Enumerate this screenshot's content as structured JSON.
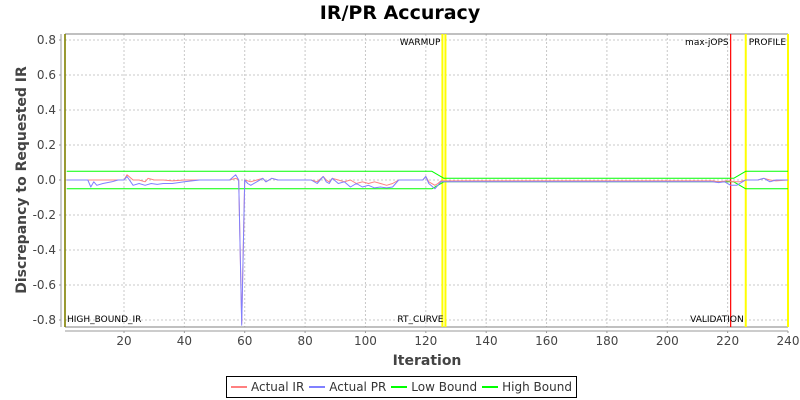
{
  "chart_data": {
    "type": "line",
    "title": "IR/PR Accuracy",
    "xlabel": "Iteration",
    "ylabel": "Discrepancy to Requested IR",
    "xlim": [
      1,
      240
    ],
    "ylim": [
      -0.83,
      0.83
    ],
    "xticks": [
      20,
      40,
      60,
      80,
      100,
      120,
      140,
      160,
      180,
      200,
      220,
      240
    ],
    "yticks": [
      0.8,
      0.6,
      0.4,
      0.2,
      0.0,
      -0.2,
      -0.4,
      -0.6,
      -0.8
    ],
    "ytick_labels": [
      "0.8",
      "0.6",
      "0.4",
      "0.2",
      "0.0",
      "-0.2",
      "-0.4",
      "-0.6",
      "-0.8"
    ],
    "grid": true,
    "legend_position": "bottom",
    "series": [
      {
        "name": "Actual IR",
        "color": "#ff8080",
        "points": [
          [
            1,
            0
          ],
          [
            8,
            0
          ],
          [
            10,
            0
          ],
          [
            14,
            0
          ],
          [
            18,
            0
          ],
          [
            20,
            0
          ],
          [
            21,
            0.03
          ],
          [
            23,
            0.0
          ],
          [
            25,
            0.0
          ],
          [
            27,
            -0.01
          ],
          [
            28,
            0.01
          ],
          [
            30,
            0.0
          ],
          [
            33,
            0.0
          ],
          [
            36,
            -0.005
          ],
          [
            40,
            0.0
          ],
          [
            45,
            0.0
          ],
          [
            50,
            0.0
          ],
          [
            55,
            0.0
          ],
          [
            57,
            0.01
          ],
          [
            58,
            0.0
          ],
          [
            59,
            -0.82
          ],
          [
            60,
            0.0
          ],
          [
            62,
            -0.01
          ],
          [
            64,
            0.0
          ],
          [
            66,
            0.01
          ],
          [
            67,
            -0.01
          ],
          [
            69,
            0.01
          ],
          [
            71,
            0.0
          ],
          [
            75,
            0.0
          ],
          [
            80,
            0.0
          ],
          [
            82,
            0.0
          ],
          [
            84,
            -0.01
          ],
          [
            86,
            0.02
          ],
          [
            87,
            0.0
          ],
          [
            88,
            -0.01
          ],
          [
            89,
            0.01
          ],
          [
            91,
            0.0
          ],
          [
            93,
            -0.01
          ],
          [
            95,
            0.0
          ],
          [
            97,
            -0.02
          ],
          [
            99,
            -0.01
          ],
          [
            101,
            -0.02
          ],
          [
            103,
            -0.01
          ],
          [
            105,
            -0.02
          ],
          [
            107,
            -0.03
          ],
          [
            109,
            -0.02
          ],
          [
            111,
            0.0
          ],
          [
            115,
            0.0
          ],
          [
            119,
            0.0
          ],
          [
            120,
            0.02
          ],
          [
            121,
            -0.01
          ],
          [
            123,
            -0.03
          ],
          [
            124,
            -0.02
          ],
          [
            125,
            -0.005
          ],
          [
            130,
            -0.005
          ],
          [
            140,
            -0.005
          ],
          [
            160,
            -0.005
          ],
          [
            180,
            -0.005
          ],
          [
            200,
            -0.005
          ],
          [
            215,
            -0.005
          ],
          [
            217,
            -0.01
          ],
          [
            220,
            -0.005
          ],
          [
            222,
            -0.01
          ],
          [
            224,
            -0.01
          ],
          [
            226,
            0.0
          ],
          [
            230,
            0.0
          ],
          [
            232,
            0.01
          ],
          [
            234,
            0.0
          ],
          [
            236,
            -0.005
          ],
          [
            240,
            0.0
          ]
        ]
      },
      {
        "name": "Actual PR",
        "color": "#8080ff",
        "points": [
          [
            1,
            0
          ],
          [
            8,
            0
          ],
          [
            9,
            -0.04
          ],
          [
            10,
            -0.01
          ],
          [
            11,
            -0.03
          ],
          [
            13,
            -0.02
          ],
          [
            16,
            -0.01
          ],
          [
            18,
            0.0
          ],
          [
            20,
            0.0
          ],
          [
            21,
            0.02
          ],
          [
            23,
            -0.03
          ],
          [
            25,
            -0.02
          ],
          [
            27,
            -0.03
          ],
          [
            29,
            -0.02
          ],
          [
            31,
            -0.025
          ],
          [
            33,
            -0.02
          ],
          [
            36,
            -0.02
          ],
          [
            40,
            -0.01
          ],
          [
            45,
            0.0
          ],
          [
            50,
            0.0
          ],
          [
            55,
            0.0
          ],
          [
            57,
            0.03
          ],
          [
            58,
            0.0
          ],
          [
            59,
            -0.83
          ],
          [
            60,
            0.0
          ],
          [
            61,
            -0.02
          ],
          [
            62,
            -0.03
          ],
          [
            64,
            -0.01
          ],
          [
            66,
            0.01
          ],
          [
            67,
            -0.01
          ],
          [
            69,
            0.01
          ],
          [
            71,
            0.0
          ],
          [
            75,
            0.0
          ],
          [
            80,
            0.0
          ],
          [
            82,
            0.0
          ],
          [
            84,
            -0.02
          ],
          [
            86,
            0.02
          ],
          [
            87,
            -0.01
          ],
          [
            88,
            -0.02
          ],
          [
            89,
            0.01
          ],
          [
            91,
            -0.02
          ],
          [
            93,
            -0.01
          ],
          [
            95,
            -0.04
          ],
          [
            97,
            -0.02
          ],
          [
            99,
            -0.04
          ],
          [
            101,
            -0.03
          ],
          [
            103,
            -0.045
          ],
          [
            105,
            -0.04
          ],
          [
            107,
            -0.045
          ],
          [
            109,
            -0.04
          ],
          [
            111,
            0.0
          ],
          [
            115,
            0.0
          ],
          [
            119,
            0.0
          ],
          [
            120,
            0.02
          ],
          [
            121,
            -0.02
          ],
          [
            123,
            -0.05
          ],
          [
            124,
            -0.03
          ],
          [
            125,
            -0.01
          ],
          [
            130,
            -0.01
          ],
          [
            140,
            -0.01
          ],
          [
            160,
            -0.01
          ],
          [
            180,
            -0.01
          ],
          [
            200,
            -0.01
          ],
          [
            215,
            -0.01
          ],
          [
            217,
            -0.015
          ],
          [
            219,
            -0.01
          ],
          [
            221,
            -0.03
          ],
          [
            223,
            -0.03
          ],
          [
            224,
            -0.02
          ],
          [
            226,
            0.0
          ],
          [
            230,
            0.0
          ],
          [
            232,
            0.01
          ],
          [
            234,
            -0.01
          ],
          [
            236,
            0.0
          ],
          [
            240,
            0.0
          ]
        ]
      },
      {
        "name": "Low Bound",
        "color": "#00ff00",
        "points": [
          [
            1,
            -0.05
          ],
          [
            122,
            -0.05
          ],
          [
            126,
            -0.01
          ],
          [
            222,
            -0.01
          ],
          [
            226,
            -0.05
          ],
          [
            240,
            -0.05
          ]
        ]
      },
      {
        "name": "High Bound",
        "color": "#00ff00",
        "points": [
          [
            1,
            0.05
          ],
          [
            122,
            0.05
          ],
          [
            126,
            0.01
          ],
          [
            222,
            0.01
          ],
          [
            226,
            0.05
          ],
          [
            240,
            0.05
          ]
        ]
      }
    ],
    "vertical_markers": [
      {
        "x": 1,
        "label": "HIGH_BOUND_IR",
        "color": "#808000",
        "label_pos": "bottom"
      },
      {
        "x": 125.5,
        "label": "WARMUP",
        "color": "#ffff00",
        "label_pos": "top"
      },
      {
        "x": 126.5,
        "label": "RT_CURVE",
        "color": "#ffff00",
        "label_pos": "bottom"
      },
      {
        "x": 221,
        "label": "max-jOPS",
        "color": "#ff0000",
        "label_pos": "top"
      },
      {
        "x": 226,
        "label": "VALIDATION",
        "color": "#ffff00",
        "label_pos": "bottom"
      },
      {
        "x": 240,
        "label": "PROFILE",
        "color": "#ffff00",
        "label_pos": "top"
      }
    ]
  },
  "legend": {
    "items": [
      {
        "label": "Actual IR",
        "color": "#ff8080"
      },
      {
        "label": "Actual PR",
        "color": "#8080ff"
      },
      {
        "label": "Low Bound",
        "color": "#00ff00"
      },
      {
        "label": "High Bound",
        "color": "#00ff00"
      }
    ]
  }
}
